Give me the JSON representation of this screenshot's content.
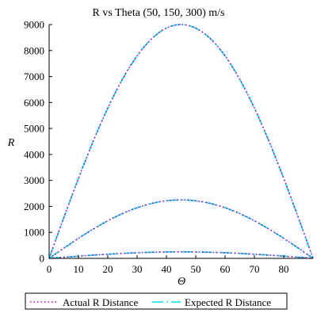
{
  "chart_data": {
    "type": "line",
    "title": "R vs Theta (50, 150, 300) m/s",
    "xlabel": "Θ",
    "ylabel": "R",
    "xlim": [
      0,
      90
    ],
    "ylim": [
      0,
      9000
    ],
    "x_ticks": [
      0,
      10,
      20,
      30,
      40,
      50,
      60,
      70,
      80
    ],
    "y_ticks": [
      0,
      1000,
      2000,
      3000,
      4000,
      5000,
      6000,
      7000,
      8000,
      9000
    ],
    "x_tick_labels": [
      "0",
      "10",
      "20",
      "30",
      "40",
      "50",
      "60",
      "70",
      "80"
    ],
    "y_tick_labels": [
      "0",
      "1000",
      "2000",
      "3000",
      "4000",
      "5000",
      "6000",
      "7000",
      "8000",
      "9000"
    ],
    "grid": false,
    "legend_position": "bottom",
    "x": [
      0,
      5,
      10,
      15,
      20,
      25,
      30,
      35,
      40,
      45,
      50,
      55,
      60,
      65,
      70,
      75,
      80,
      85,
      90
    ],
    "series": [
      {
        "name": "Actual R Distance",
        "color": "#b000b0",
        "style": "dotted",
        "launch_speed_m_s": 50,
        "values": [
          0,
          43,
          85,
          125,
          160,
          191,
          216,
          235,
          246,
          250,
          246,
          235,
          216,
          191,
          160,
          125,
          85,
          43,
          0
        ]
      },
      {
        "name": "Actual R Distance",
        "color": "#b000b0",
        "style": "dotted",
        "launch_speed_m_s": 150,
        "values": [
          0,
          391,
          770,
          1125,
          1446,
          1724,
          1949,
          2114,
          2216,
          2250,
          2216,
          2114,
          1949,
          1724,
          1446,
          1125,
          770,
          391,
          0
        ]
      },
      {
        "name": "Actual R Distance",
        "color": "#b000b0",
        "style": "dotted",
        "launch_speed_m_s": 300,
        "values": [
          0,
          1563,
          3078,
          4500,
          5785,
          6894,
          7794,
          8457,
          8863,
          9000,
          8863,
          8457,
          7794,
          6894,
          5785,
          4500,
          3078,
          1563,
          0
        ]
      },
      {
        "name": "Expected R Distance",
        "color": "#00e0ee",
        "style": "dashed",
        "launch_speed_m_s": 50,
        "values": [
          0,
          43,
          85,
          125,
          160,
          191,
          216,
          235,
          246,
          250,
          246,
          235,
          216,
          191,
          160,
          125,
          85,
          43,
          0
        ]
      },
      {
        "name": "Expected R Distance",
        "color": "#00e0ee",
        "style": "dashed",
        "launch_speed_m_s": 150,
        "values": [
          0,
          391,
          770,
          1125,
          1446,
          1724,
          1949,
          2114,
          2216,
          2250,
          2216,
          2114,
          1949,
          1724,
          1446,
          1125,
          770,
          391,
          0
        ]
      },
      {
        "name": "Expected R Distance",
        "color": "#00e0ee",
        "style": "dashed",
        "launch_speed_m_s": 300,
        "values": [
          0,
          1563,
          3078,
          4500,
          5785,
          6894,
          7794,
          8457,
          8863,
          9000,
          8863,
          8457,
          7794,
          6894,
          5785,
          4500,
          3078,
          1563,
          0
        ]
      }
    ],
    "legend": [
      {
        "label": "Actual R Distance",
        "color": "#b000b0",
        "style": "dotted"
      },
      {
        "label": "Expected R Distance",
        "color": "#00e0ee",
        "style": "dashed"
      }
    ]
  }
}
